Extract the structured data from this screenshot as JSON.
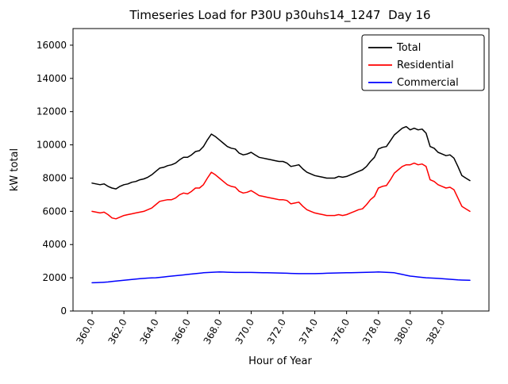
{
  "title": "Timeseries Load for P30U p30uhs14_1247  Day 16",
  "chart_data": {
    "type": "line",
    "title": "Timeseries Load for P30U p30uhs14_1247  Day 16",
    "xlabel": "Hour of Year",
    "ylabel": "kW total",
    "xlim": [
      358.8,
      384.95
    ],
    "ylim": [
      0,
      17000
    ],
    "grid": false,
    "legend_position": "upper right",
    "x_ticks": [
      360,
      362,
      364,
      366,
      368,
      370,
      372,
      374,
      376,
      378,
      380,
      382
    ],
    "x_tick_labels": [
      "360.0",
      "362.0",
      "364.0",
      "366.0",
      "368.0",
      "370.0",
      "372.0",
      "374.0",
      "376.0",
      "378.0",
      "380.0",
      "382.0"
    ],
    "y_ticks": [
      0,
      2000,
      4000,
      6000,
      8000,
      10000,
      12000,
      14000,
      16000
    ],
    "y_tick_labels": [
      "0",
      "2000",
      "4000",
      "6000",
      "8000",
      "10000",
      "12000",
      "14000",
      "16000"
    ],
    "x": [
      360.0,
      360.25,
      360.5,
      360.75,
      361.0,
      361.25,
      361.5,
      361.75,
      362.0,
      362.25,
      362.5,
      362.75,
      363.0,
      363.25,
      363.5,
      363.75,
      364.0,
      364.25,
      364.5,
      364.75,
      365.0,
      365.25,
      365.5,
      365.75,
      366.0,
      366.25,
      366.5,
      366.75,
      367.0,
      367.25,
      367.5,
      367.75,
      368.0,
      368.25,
      368.5,
      368.75,
      369.0,
      369.25,
      369.5,
      369.75,
      370.0,
      370.25,
      370.5,
      370.75,
      371.0,
      371.25,
      371.5,
      371.75,
      372.0,
      372.25,
      372.5,
      372.75,
      373.0,
      373.25,
      373.5,
      373.75,
      374.0,
      374.25,
      374.5,
      374.75,
      375.0,
      375.25,
      375.5,
      375.75,
      376.0,
      376.25,
      376.5,
      376.75,
      377.0,
      377.25,
      377.5,
      377.75,
      378.0,
      378.25,
      378.5,
      378.75,
      379.0,
      379.25,
      379.5,
      379.75,
      380.0,
      380.25,
      380.5,
      380.75,
      381.0,
      381.25,
      381.5,
      381.75,
      382.0,
      382.25,
      382.5,
      382.75,
      383.0,
      383.25,
      383.5,
      383.75
    ],
    "series": [
      {
        "name": "Total",
        "color": "#000000",
        "values": [
          7700,
          7650,
          7600,
          7650,
          7500,
          7400,
          7350,
          7500,
          7600,
          7650,
          7750,
          7800,
          7900,
          7950,
          8050,
          8200,
          8400,
          8600,
          8650,
          8750,
          8800,
          8900,
          9100,
          9250,
          9250,
          9400,
          9600,
          9650,
          9900,
          10300,
          10650,
          10500,
          10300,
          10100,
          9900,
          9800,
          9750,
          9500,
          9400,
          9450,
          9550,
          9400,
          9250,
          9200,
          9150,
          9100,
          9050,
          9000,
          9000,
          8900,
          8700,
          8750,
          8800,
          8550,
          8350,
          8250,
          8150,
          8100,
          8050,
          8000,
          8000,
          8000,
          8100,
          8050,
          8100,
          8200,
          8300,
          8400,
          8500,
          8700,
          9000,
          9250,
          9750,
          9850,
          9900,
          10250,
          10600,
          10800,
          11000,
          11100,
          10900,
          11000,
          10900,
          10950,
          10700,
          9900,
          9800,
          9550,
          9450,
          9350,
          9400,
          9200,
          8700,
          8150,
          8000,
          7850
        ]
      },
      {
        "name": "Residential",
        "color": "#ff0000",
        "values": [
          6000,
          5950,
          5900,
          5950,
          5800,
          5600,
          5550,
          5650,
          5750,
          5800,
          5850,
          5900,
          5950,
          6000,
          6100,
          6200,
          6400,
          6600,
          6650,
          6700,
          6700,
          6800,
          7000,
          7100,
          7050,
          7200,
          7400,
          7400,
          7600,
          8000,
          8350,
          8200,
          8000,
          7800,
          7600,
          7500,
          7450,
          7200,
          7100,
          7150,
          7250,
          7100,
          6950,
          6900,
          6850,
          6800,
          6750,
          6700,
          6700,
          6650,
          6450,
          6500,
          6550,
          6300,
          6100,
          6000,
          5900,
          5850,
          5800,
          5750,
          5750,
          5750,
          5800,
          5750,
          5800,
          5900,
          6000,
          6100,
          6150,
          6400,
          6700,
          6900,
          7400,
          7500,
          7550,
          7900,
          8300,
          8500,
          8700,
          8800,
          8800,
          8900,
          8800,
          8850,
          8700,
          7900,
          7800,
          7600,
          7500,
          7400,
          7450,
          7300,
          6800,
          6300,
          6150,
          6000
        ]
      },
      {
        "name": "Commercial",
        "color": "#0000ff",
        "values": [
          1700,
          1710,
          1720,
          1735,
          1750,
          1775,
          1800,
          1825,
          1850,
          1875,
          1900,
          1925,
          1950,
          1965,
          1980,
          1990,
          2000,
          2025,
          2050,
          2075,
          2100,
          2125,
          2150,
          2175,
          2200,
          2225,
          2250,
          2275,
          2300,
          2315,
          2325,
          2340,
          2350,
          2345,
          2335,
          2330,
          2320,
          2320,
          2320,
          2320,
          2320,
          2315,
          2310,
          2305,
          2300,
          2295,
          2290,
          2285,
          2280,
          2272,
          2265,
          2258,
          2250,
          2250,
          2250,
          2250,
          2250,
          2258,
          2265,
          2272,
          2280,
          2285,
          2290,
          2295,
          2300,
          2305,
          2310,
          2315,
          2320,
          2328,
          2335,
          2342,
          2350,
          2340,
          2330,
          2315,
          2300,
          2250,
          2200,
          2150,
          2100,
          2075,
          2050,
          2025,
          2000,
          1988,
          1975,
          1962,
          1950,
          1930,
          1910,
          1890,
          1870,
          1863,
          1857,
          1850
        ]
      }
    ]
  }
}
